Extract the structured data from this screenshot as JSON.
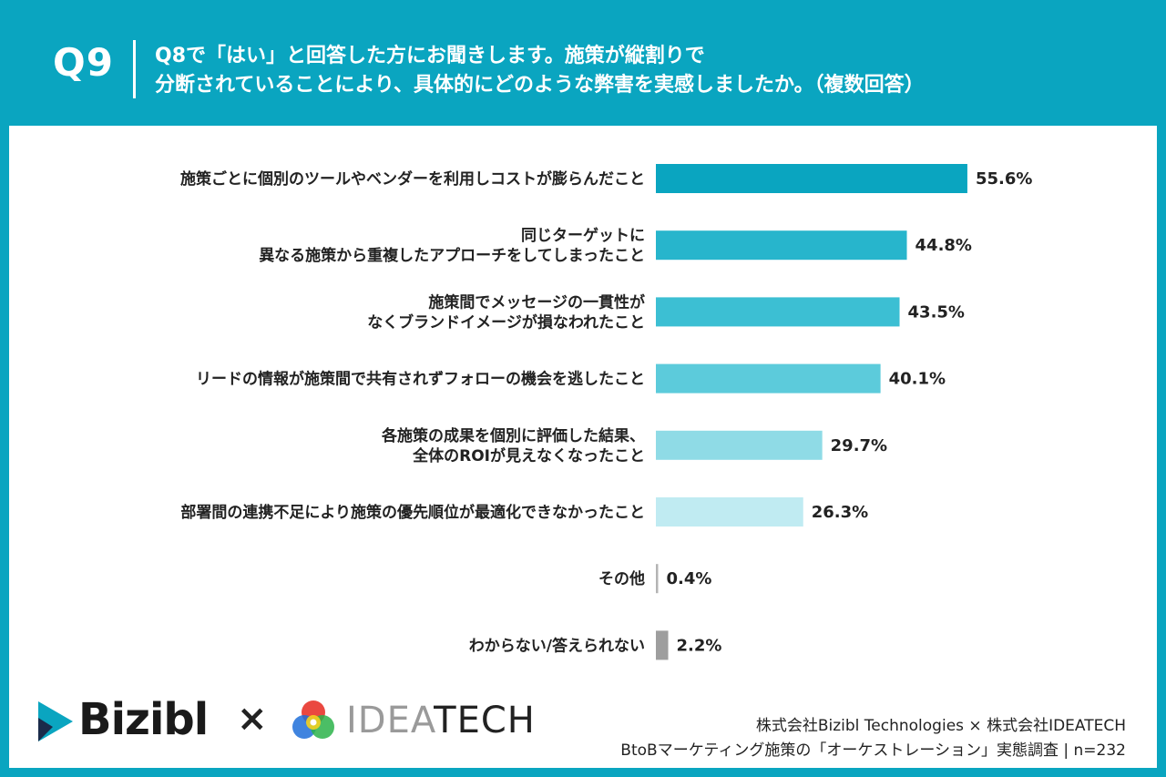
{
  "header": {
    "question_number": "Q9",
    "question_line1": "Q8で「はい」と回答した方にお聞きします。施策が縦割りで",
    "question_line2": "分断されていることにより、具体的にどのような弊害を実感しましたか。（複数回答）"
  },
  "chart_data": {
    "type": "bar",
    "orientation": "horizontal",
    "categories": [
      [
        "施策ごとに個別のツールやベンダーを利用しコストが膨らんだこと"
      ],
      [
        "同じターゲットに",
        "異なる施策から重複したアプローチをしてしまったこと"
      ],
      [
        "施策間でメッセージの一貫性が",
        "なくブランドイメージが損なわれたこと"
      ],
      [
        "リードの情報が施策間で共有されずフォローの機会を逃したこと"
      ],
      [
        "各施策の成果を個別に評価した結果、",
        "全体のROIが見えなくなったこと"
      ],
      [
        "部署間の連携不足により施策の優先順位が最適化できなかったこと"
      ],
      [
        "その他"
      ],
      [
        "わからない/答えられない"
      ]
    ],
    "values": [
      55.6,
      44.8,
      43.5,
      40.1,
      29.7,
      26.3,
      0.4,
      2.2
    ],
    "value_labels": [
      "55.6%",
      "44.8%",
      "43.5%",
      "40.1%",
      "29.7%",
      "26.3%",
      "0.4%",
      "2.2%"
    ],
    "colors": [
      "#0aa5c0",
      "#27b5cc",
      "#3cbfd3",
      "#5ccbdb",
      "#8fdbe6",
      "#c0ebf2",
      "#b4b4b4",
      "#9e9e9e"
    ],
    "xlim": [
      0,
      100
    ],
    "grid": false,
    "legend": "none"
  },
  "footer": {
    "logo_bizibl": "Bizibl",
    "times": "×",
    "logo_ideatech_light": "IDEA",
    "logo_ideatech_dark": "TECH",
    "credit_line1": "株式会社Bizibl Technologies × 株式会社IDEATECH",
    "credit_line2": "BtoBマーケティング施策の「オーケストレーション」実態調査 | n=232"
  },
  "colors": {
    "brand": "#0aa5c0",
    "panel": "#ffffff",
    "text": "#222222"
  }
}
